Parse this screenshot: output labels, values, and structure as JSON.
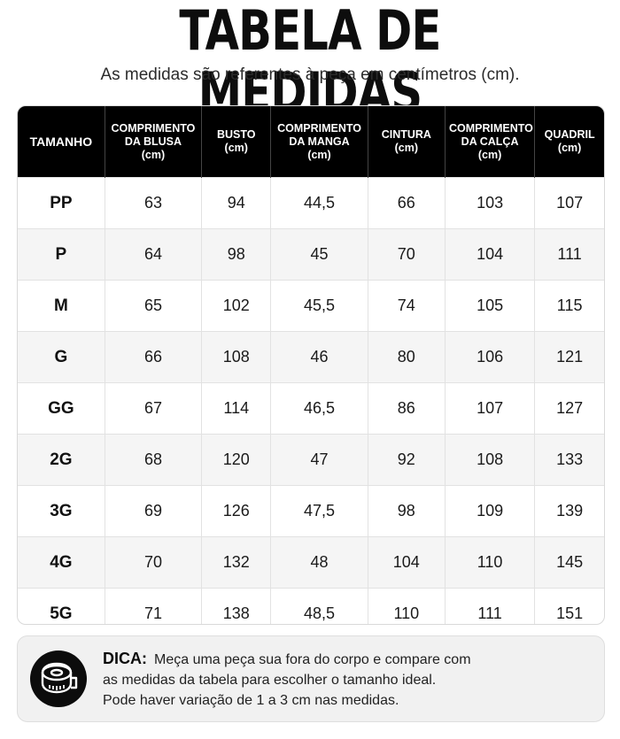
{
  "title": "TABELA DE MEDIDAS",
  "subtitle": "As medidas são referentes à peça em centímetros (cm).",
  "table": {
    "headers": [
      {
        "line1": "TAMANHO",
        "line2": "",
        "line3": ""
      },
      {
        "line1": "COMPRIMENTO",
        "line2": "DA BLUSA",
        "line3": "(cm)"
      },
      {
        "line1": "BUSTO",
        "line2": "(cm)",
        "line3": ""
      },
      {
        "line1": "COMPRIMENTO",
        "line2": "DA MANGA",
        "line3": "(cm)"
      },
      {
        "line1": "CINTURA",
        "line2": "(cm)",
        "line3": ""
      },
      {
        "line1": "COMPRIMENTO",
        "line2": "DA CALÇA",
        "line3": "(cm)"
      },
      {
        "line1": "QUADRIL",
        "line2": "(cm)",
        "line3": ""
      }
    ],
    "rows": [
      [
        "PP",
        "63",
        "94",
        "44,5",
        "66",
        "103",
        "107"
      ],
      [
        "P",
        "64",
        "98",
        "45",
        "70",
        "104",
        "111"
      ],
      [
        "M",
        "65",
        "102",
        "45,5",
        "74",
        "105",
        "115"
      ],
      [
        "G",
        "66",
        "108",
        "46",
        "80",
        "106",
        "121"
      ],
      [
        "GG",
        "67",
        "114",
        "46,5",
        "86",
        "107",
        "127"
      ],
      [
        "2G",
        "68",
        "120",
        "47",
        "92",
        "108",
        "133"
      ],
      [
        "3G",
        "69",
        "126",
        "47,5",
        "98",
        "109",
        "139"
      ],
      [
        "4G",
        "70",
        "132",
        "48",
        "104",
        "110",
        "145"
      ],
      [
        "5G",
        "71",
        "138",
        "48,5",
        "110",
        "111",
        "151"
      ]
    ]
  },
  "tip": {
    "label": "DICA:",
    "line1": "Meça uma peça sua fora do corpo e compare com",
    "line2": "as medidas da tabela para escolher o tamanho ideal.",
    "line3": "Pode haver variação de 1 a 3 cm nas medidas.",
    "icon": "measuring-tape-icon"
  },
  "colors": {
    "header_bg": "#000000",
    "stripe": "#f5f5f5",
    "tip_bg": "#f1f1f1"
  }
}
